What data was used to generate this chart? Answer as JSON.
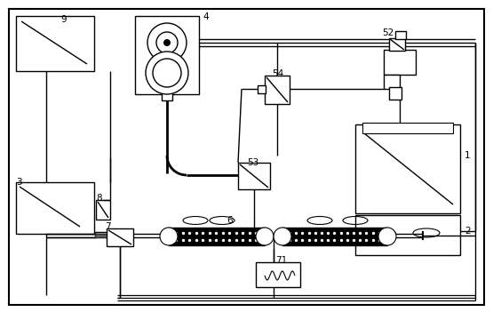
{
  "bg_color": "#ffffff",
  "line_color": "#000000",
  "fig_width": 5.55,
  "fig_height": 3.51,
  "dpi": 100
}
